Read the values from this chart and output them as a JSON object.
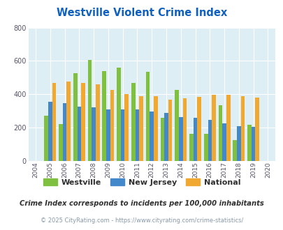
{
  "title": "Westville Violent Crime Index",
  "years": [
    2004,
    2005,
    2006,
    2007,
    2008,
    2009,
    2010,
    2011,
    2012,
    2013,
    2014,
    2015,
    2016,
    2017,
    2018,
    2019,
    2020
  ],
  "westville": [
    null,
    270,
    220,
    525,
    608,
    540,
    560,
    468,
    533,
    260,
    425,
    165,
    165,
    333,
    125,
    218,
    null
  ],
  "new_jersey": [
    null,
    355,
    348,
    328,
    323,
    308,
    308,
    308,
    295,
    287,
    265,
    258,
    248,
    225,
    207,
    205,
    null
  ],
  "national": [
    null,
    470,
    478,
    468,
    458,
    428,
    400,
    390,
    388,
    368,
    375,
    383,
    398,
    398,
    388,
    380,
    null
  ],
  "color_westville": "#80c040",
  "color_nj": "#4488cc",
  "color_national": "#f0a830",
  "ylim": [
    0,
    800
  ],
  "yticks": [
    0,
    200,
    400,
    600,
    800
  ],
  "bg_color": "#ddeef4",
  "subtitle": "Crime Index corresponds to incidents per 100,000 inhabitants",
  "footer": "© 2025 CityRating.com - https://www.cityrating.com/crime-statistics/",
  "title_color": "#1060c0",
  "subtitle_color": "#303030",
  "footer_color": "#8899aa"
}
